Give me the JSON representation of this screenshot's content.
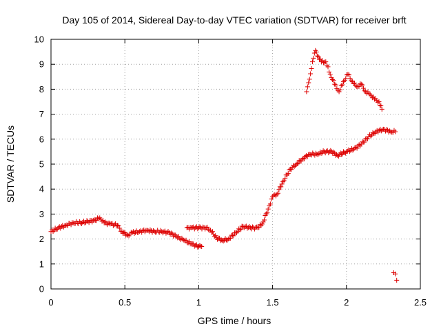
{
  "chart_data": {
    "type": "scatter",
    "title": "Day 105 of 2014, Sidereal Day-to-day VTEC variation (SDTVAR) for receiver brft",
    "xlabel": "GPS time / hours",
    "ylabel": "SDTVAR / TECUs",
    "xlim": [
      0,
      2.5
    ],
    "ylim": [
      0,
      10
    ],
    "xticks": [
      0,
      0.5,
      1,
      1.5,
      2,
      2.5
    ],
    "xtick_labels": [
      "0",
      "0.5",
      "1",
      "1.5",
      "2",
      "2.5"
    ],
    "yticks": [
      0,
      1,
      2,
      3,
      4,
      5,
      6,
      7,
      8,
      9,
      10
    ],
    "ytick_labels": [
      "0",
      "1",
      "2",
      "3",
      "4",
      "5",
      "6",
      "7",
      "8",
      "9",
      "10"
    ],
    "grid": true,
    "marker": "+",
    "color": "#dd0000",
    "series": [
      {
        "name": "SDTVAR",
        "segments": [
          [
            [
              0.0,
              2.3
            ],
            [
              0.05,
              2.45
            ],
            [
              0.1,
              2.55
            ],
            [
              0.15,
              2.65
            ],
            [
              0.2,
              2.65
            ],
            [
              0.25,
              2.7
            ],
            [
              0.3,
              2.75
            ],
            [
              0.33,
              2.85
            ],
            [
              0.36,
              2.65
            ],
            [
              0.4,
              2.6
            ],
            [
              0.45,
              2.55
            ],
            [
              0.48,
              2.3
            ],
            [
              0.52,
              2.15
            ],
            [
              0.55,
              2.25
            ],
            [
              0.6,
              2.3
            ],
            [
              0.65,
              2.35
            ],
            [
              0.7,
              2.3
            ],
            [
              0.75,
              2.3
            ],
            [
              0.8,
              2.25
            ],
            [
              0.85,
              2.1
            ],
            [
              0.9,
              1.95
            ],
            [
              0.95,
              1.8
            ],
            [
              1.0,
              1.7
            ],
            [
              1.02,
              1.7
            ]
          ],
          [
            [
              0.92,
              2.45
            ],
            [
              0.95,
              2.45
            ],
            [
              1.0,
              2.45
            ],
            [
              1.05,
              2.45
            ],
            [
              1.08,
              2.35
            ],
            [
              1.12,
              2.05
            ],
            [
              1.16,
              1.95
            ],
            [
              1.2,
              2.0
            ],
            [
              1.25,
              2.25
            ],
            [
              1.3,
              2.5
            ],
            [
              1.35,
              2.45
            ],
            [
              1.4,
              2.45
            ],
            [
              1.43,
              2.6
            ],
            [
              1.47,
              3.2
            ],
            [
              1.5,
              3.7
            ],
            [
              1.53,
              3.8
            ],
            [
              1.57,
              4.3
            ],
            [
              1.62,
              4.8
            ],
            [
              1.66,
              5.0
            ],
            [
              1.7,
              5.2
            ],
            [
              1.75,
              5.4
            ],
            [
              1.8,
              5.4
            ],
            [
              1.85,
              5.5
            ],
            [
              1.9,
              5.5
            ],
            [
              1.94,
              5.35
            ],
            [
              2.0,
              5.5
            ],
            [
              2.05,
              5.6
            ],
            [
              2.1,
              5.8
            ],
            [
              2.15,
              6.1
            ],
            [
              2.2,
              6.3
            ],
            [
              2.25,
              6.4
            ],
            [
              2.3,
              6.3
            ],
            [
              2.33,
              6.3
            ]
          ],
          [
            [
              1.73,
              7.9
            ],
            [
              1.75,
              8.4
            ],
            [
              1.77,
              9.1
            ],
            [
              1.79,
              9.55
            ],
            [
              1.81,
              9.3
            ],
            [
              1.83,
              9.1
            ],
            [
              1.86,
              9.1
            ],
            [
              1.89,
              8.6
            ],
            [
              1.92,
              8.2
            ],
            [
              1.95,
              7.9
            ],
            [
              1.98,
              8.3
            ],
            [
              2.01,
              8.6
            ],
            [
              2.04,
              8.3
            ],
            [
              2.07,
              8.1
            ],
            [
              2.1,
              8.2
            ],
            [
              2.13,
              7.9
            ],
            [
              2.16,
              7.8
            ],
            [
              2.19,
              7.6
            ],
            [
              2.22,
              7.5
            ],
            [
              2.24,
              7.2
            ]
          ],
          [
            [
              2.32,
              0.65
            ],
            [
              2.33,
              0.6
            ],
            [
              2.34,
              0.35
            ]
          ]
        ]
      }
    ]
  }
}
